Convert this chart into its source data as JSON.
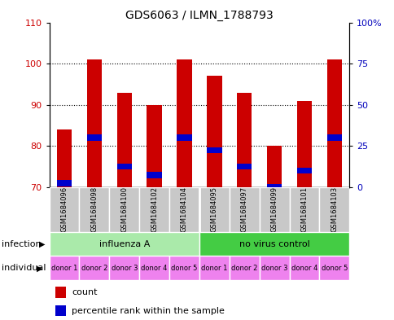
{
  "title": "GDS6063 / ILMN_1788793",
  "samples": [
    "GSM1684096",
    "GSM1684098",
    "GSM1684100",
    "GSM1684102",
    "GSM1684104",
    "GSM1684095",
    "GSM1684097",
    "GSM1684099",
    "GSM1684101",
    "GSM1684103"
  ],
  "red_values": [
    84,
    101,
    93,
    90,
    101,
    97,
    93,
    80,
    91,
    101
  ],
  "blue_values": [
    71,
    82,
    75,
    73,
    82,
    79,
    75,
    70,
    74,
    82
  ],
  "ymin": 70,
  "ymax": 110,
  "y_left_ticks": [
    70,
    80,
    90,
    100,
    110
  ],
  "y_right_ticks": [
    0,
    25,
    50,
    75,
    100
  ],
  "infection_groups": [
    {
      "label": "influenza A",
      "start": 0,
      "end": 5,
      "color": "#aaeaaa"
    },
    {
      "label": "no virus control",
      "start": 5,
      "end": 10,
      "color": "#44cc44"
    }
  ],
  "individual_labels": [
    "donor 1",
    "donor 2",
    "donor 3",
    "donor 4",
    "donor 5",
    "donor 1",
    "donor 2",
    "donor 3",
    "donor 4",
    "donor 5"
  ],
  "individual_color": "#ee82ee",
  "bar_color_red": "#cc0000",
  "bar_color_blue": "#0000cc",
  "bar_width": 0.5,
  "legend_count_color": "#cc0000",
  "legend_percentile_color": "#0000cc",
  "left_axis_color": "#cc0000",
  "right_axis_color": "#0000bb",
  "header_color": "#c8c8c8",
  "blue_bar_height": 1.5
}
